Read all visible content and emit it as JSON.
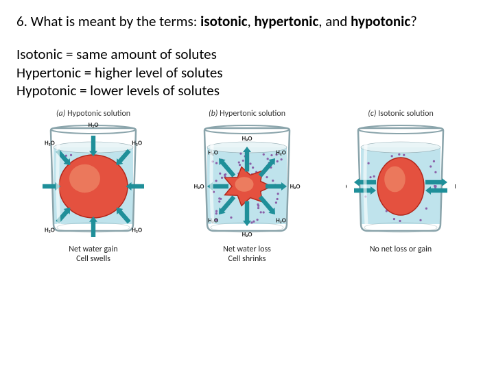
{
  "question": {
    "prefix": "6. What is meant by the terms: ",
    "term1": "isotonic",
    "sep1": ", ",
    "term2": "hypertonic",
    "sep2": ", and ",
    "term3": "hypotonic",
    "suffix": "?"
  },
  "answers": {
    "line1": "Isotonic = same amount of solutes",
    "line2": "Hypertonic = higher level of solutes",
    "line3": "Hypotonic = lower levels of solutes"
  },
  "panels": {
    "a": {
      "letter": "(a)",
      "title": " Hypotonic solution",
      "caption1": "Net water gain",
      "caption2": "Cell swells",
      "cell_rx": 50,
      "cell_ry": 46,
      "label_gap": 14
    },
    "b": {
      "letter": "(b)",
      "title": " Hypertonic solution",
      "caption1": "Net water loss",
      "caption2": "Cell shrinks",
      "cell_rx": 30,
      "cell_ry": 24,
      "label_gap": 14
    },
    "c": {
      "letter": "(c)",
      "title": " Isotonic solution",
      "caption1": "No net loss or gain",
      "caption2": "",
      "cell_rx": 34,
      "cell_ry": 42,
      "label_gap": 18
    }
  },
  "labels": {
    "water": "H₂O"
  },
  "colors": {
    "water_fill": "#bfe3ec",
    "water_surface": "#e8f4f7",
    "beaker_stroke": "#8aa4ab",
    "beaker_highlight": "#ffffff",
    "cell_fill": "#e4513f",
    "cell_stroke": "#b2271b",
    "cell_inner": "#f2a07a",
    "arrow_fill": "#1f8f99",
    "dot_color": "#8a5fa8",
    "label_color": "#222222"
  }
}
